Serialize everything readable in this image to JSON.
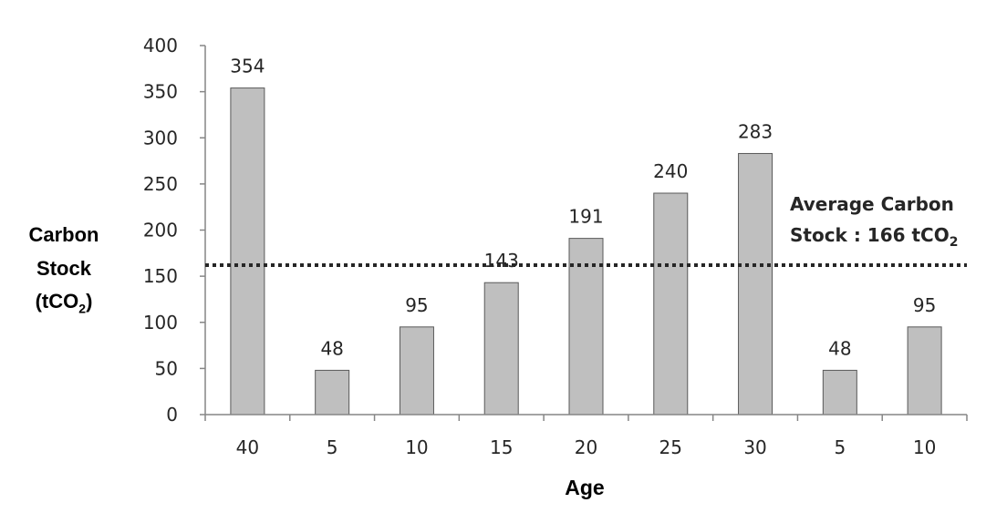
{
  "chart_data": {
    "type": "bar",
    "categories": [
      "40",
      "5",
      "10",
      "15",
      "20",
      "25",
      "30",
      "5",
      "10"
    ],
    "values": [
      354,
      48,
      95,
      143,
      191,
      240,
      283,
      48,
      95
    ],
    "xlabel": "Age",
    "ylabel": {
      "line1": "Carbon",
      "line2": "Stock",
      "line3_main": "(tCO",
      "line3_sub": "2",
      "line3_end": ")"
    },
    "ylim": [
      0,
      400
    ],
    "yticks": [
      0,
      50,
      100,
      150,
      200,
      250,
      300,
      350,
      400
    ],
    "bar_color": "#bfbfbf",
    "bar_edge_color": "#595959",
    "average": {
      "value": 166,
      "label_line1": "Average Carbon",
      "label_line2_main": "Stock : 166 tCO",
      "label_line2_sub": "2",
      "line_style": "dotted"
    },
    "grid": false,
    "legend": "none"
  }
}
